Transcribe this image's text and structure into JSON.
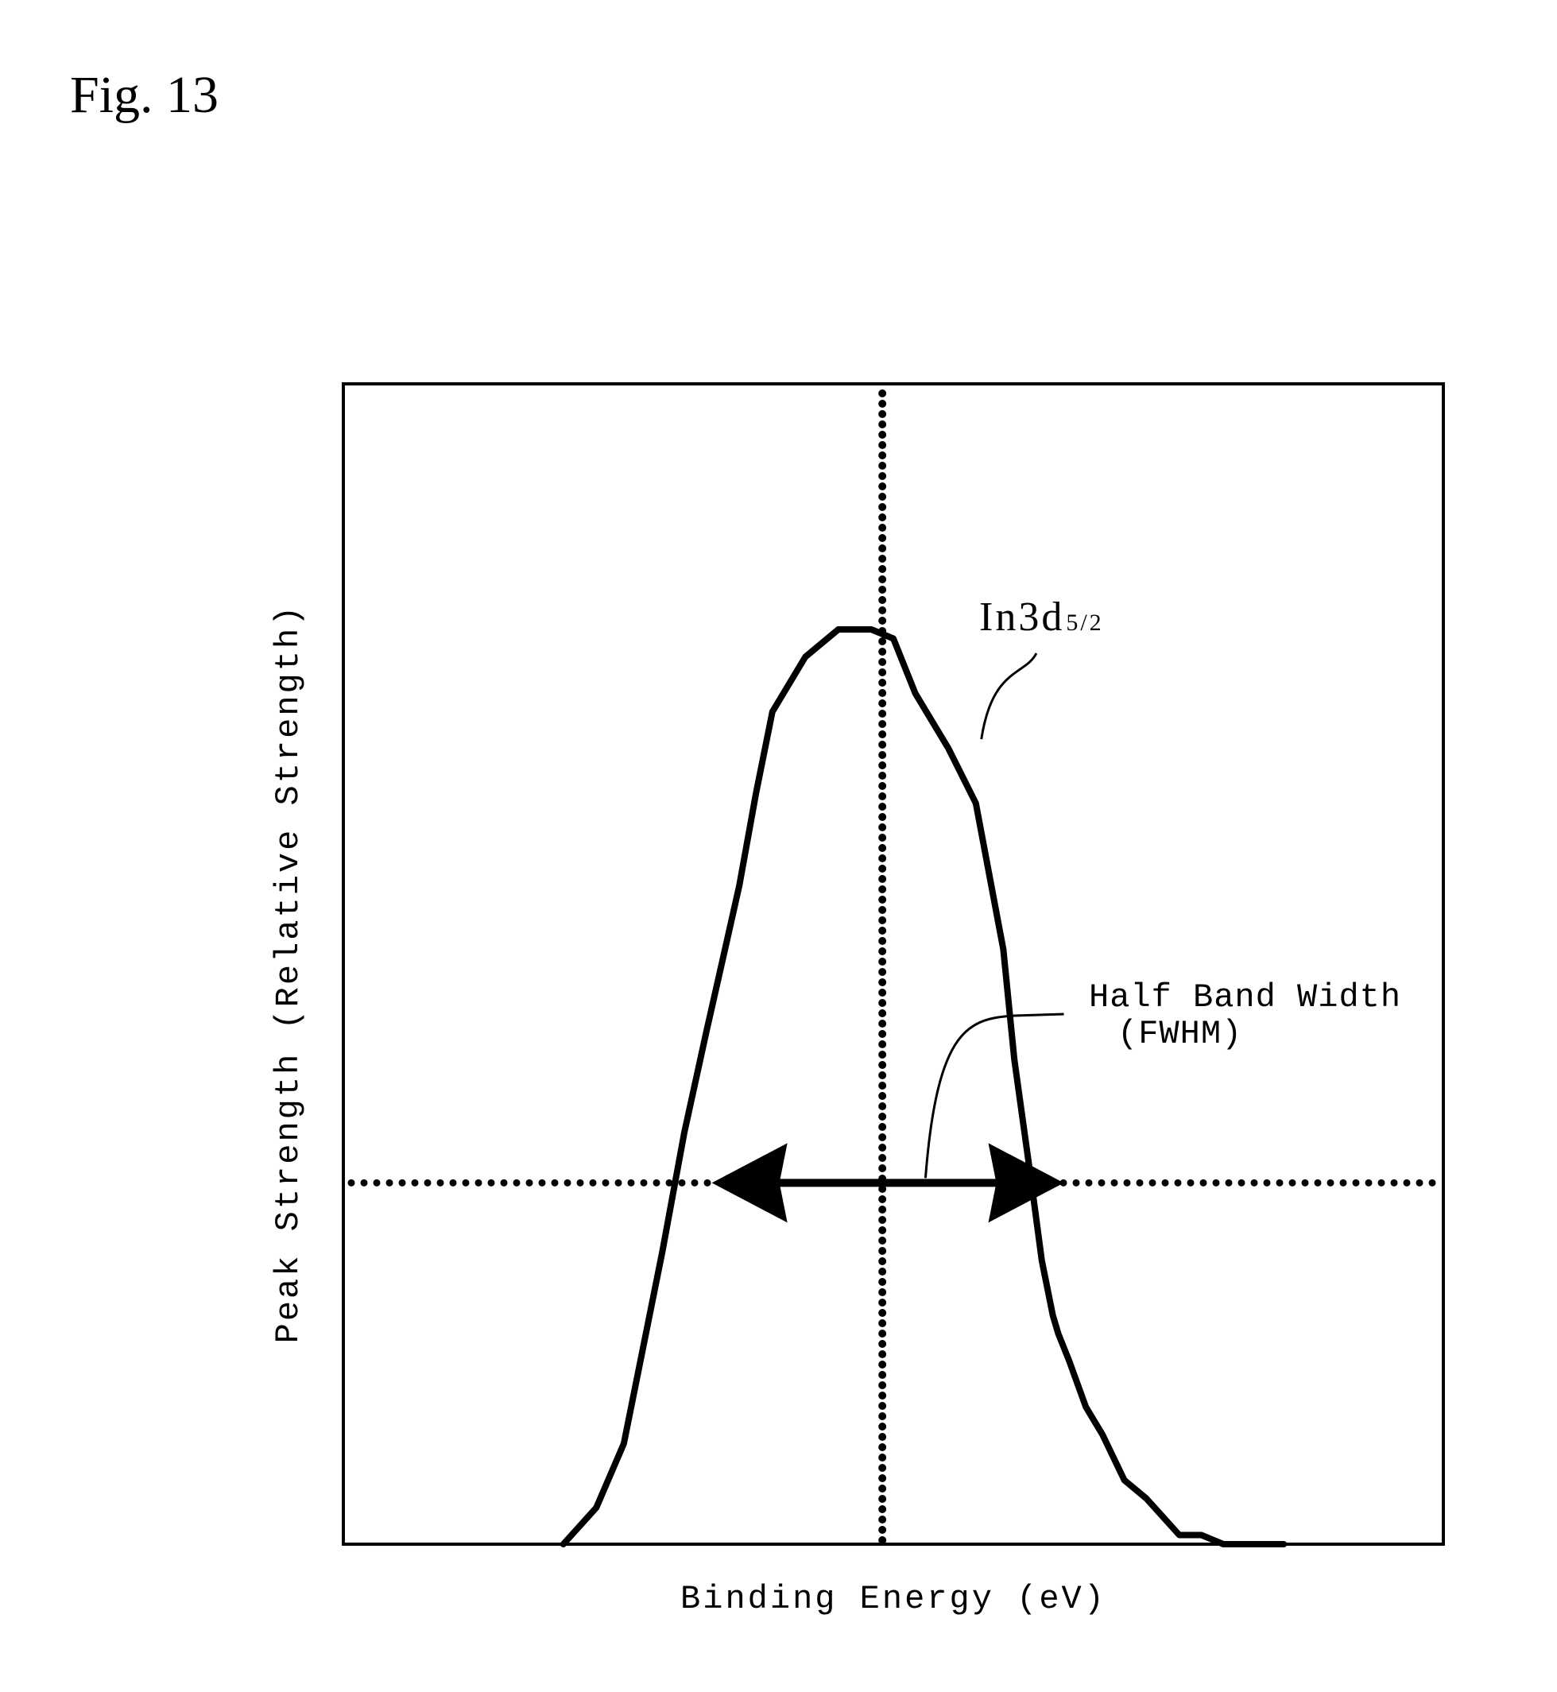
{
  "figure_label": "Fig. 13",
  "chart_data": {
    "type": "line",
    "title": "",
    "xlabel": "Binding Energy (eV)",
    "ylabel": "Peak Strength (Relative Strength)",
    "xlim": [
      0,
      1
    ],
    "ylim": [
      0,
      1
    ],
    "grid": false,
    "series": [
      {
        "name": "In3d5/2",
        "x": [
          0.2,
          0.23,
          0.255,
          0.27,
          0.29,
          0.31,
          0.33,
          0.345,
          0.36,
          0.375,
          0.39,
          0.42,
          0.45,
          0.48,
          0.5,
          0.52,
          0.55,
          0.575,
          0.6,
          0.61,
          0.625,
          0.635,
          0.645,
          0.65,
          0.66,
          0.675,
          0.69,
          0.71,
          0.73,
          0.76,
          0.78,
          0.8,
          0.84,
          0.855
        ],
        "y": [
          0.0,
          0.04,
          0.11,
          0.2,
          0.32,
          0.45,
          0.56,
          0.64,
          0.72,
          0.82,
          0.91,
          0.97,
          1.0,
          1.0,
          0.99,
          0.93,
          0.87,
          0.81,
          0.65,
          0.53,
          0.4,
          0.31,
          0.25,
          0.23,
          0.2,
          0.15,
          0.12,
          0.07,
          0.05,
          0.01,
          0.01,
          0.0,
          0.0,
          0.0
        ]
      }
    ],
    "peak_x": 0.49,
    "half_max_y": 0.395,
    "fwhm_range": [
      0.335,
      0.655
    ],
    "annotations": {
      "peak_label_main": "In3d",
      "peak_label_sub": "5/2",
      "fwhm_line1": "Half Band Width",
      "fwhm_line2": "(FWHM)"
    }
  }
}
